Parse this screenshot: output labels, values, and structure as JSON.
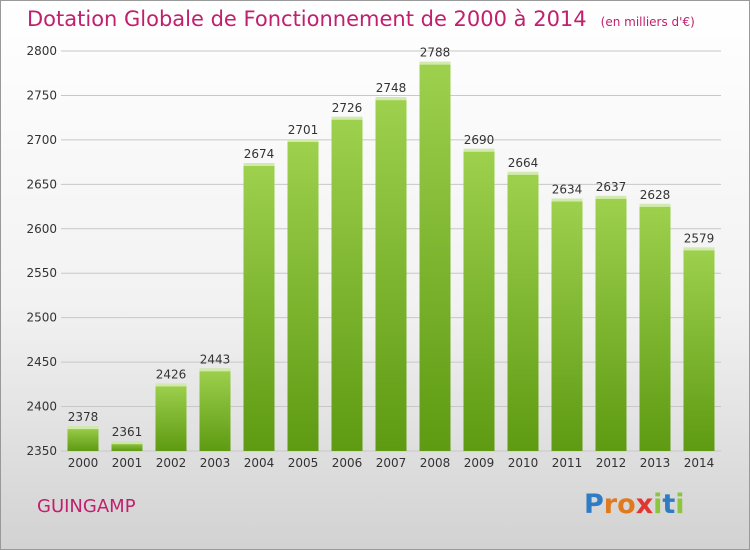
{
  "title": "Dotation Globale de Fonctionnement de 2000 à 2014",
  "unit": "(en milliers d'€)",
  "city": "GUINGAMP",
  "logo": {
    "letters": [
      "P",
      "r",
      "o",
      "x",
      "i",
      "t",
      "i"
    ],
    "colors": [
      "#2e7cc4",
      "#e07a1f",
      "#e07a1f",
      "#e3342f",
      "#8cc63f",
      "#2e7cc4",
      "#8cc63f"
    ]
  },
  "colors": {
    "bar_top": "#9ed14e",
    "bar_bottom": "#5e9a12",
    "grid": "#c8c8c8"
  },
  "chart_data": {
    "type": "bar",
    "categories": [
      "2000",
      "2001",
      "2002",
      "2003",
      "2004",
      "2005",
      "2006",
      "2007",
      "2008",
      "2009",
      "2010",
      "2011",
      "2012",
      "2013",
      "2014"
    ],
    "values": [
      2378,
      2361,
      2426,
      2443,
      2674,
      2701,
      2726,
      2748,
      2788,
      2690,
      2664,
      2634,
      2637,
      2628,
      2579
    ],
    "ylim": [
      2350,
      2800
    ],
    "yticks": [
      2350,
      2400,
      2450,
      2500,
      2550,
      2600,
      2650,
      2700,
      2750,
      2800
    ],
    "grid": true
  }
}
